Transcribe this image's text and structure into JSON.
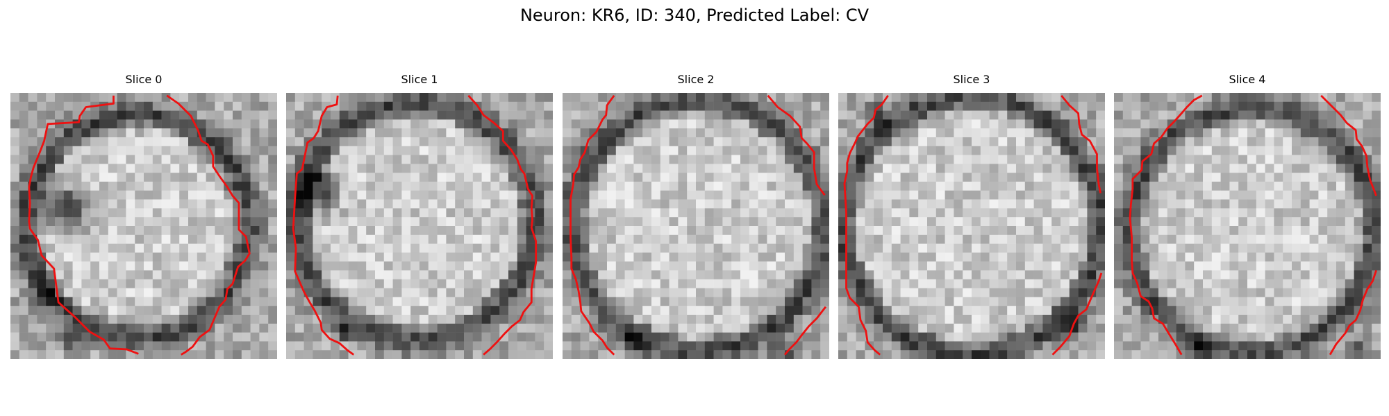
{
  "figure": {
    "title": "Neuron: KR6, ID: 340, Predicted Label: CV"
  },
  "panels": [
    {
      "title": "Slice 0"
    },
    {
      "title": "Slice 1"
    },
    {
      "title": "Slice 2"
    },
    {
      "title": "Slice 3"
    },
    {
      "title": "Slice 4"
    }
  ],
  "colors": {
    "background": "#ffffff",
    "contour": "#ee1111",
    "colormap": "grayscale"
  }
}
